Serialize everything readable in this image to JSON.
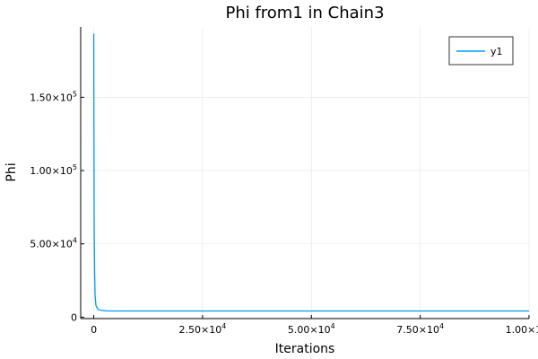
{
  "chart_data": {
    "type": "line",
    "title": "Phi from1 in Chain3",
    "xlabel": "Iterations",
    "ylabel": "Phi",
    "xlim": [
      -3000,
      100000
    ],
    "ylim": [
      -1000,
      198000
    ],
    "grid": true,
    "legend_position": "top-right",
    "x_ticks": [
      {
        "value": 0,
        "mantissa": "0",
        "exp": ""
      },
      {
        "value": 25000,
        "mantissa": "2.50×10",
        "exp": "4"
      },
      {
        "value": 50000,
        "mantissa": "5.00×10",
        "exp": "4"
      },
      {
        "value": 75000,
        "mantissa": "7.50×10",
        "exp": "4"
      },
      {
        "value": 100000,
        "mantissa": "1.00×10",
        "exp": "5"
      }
    ],
    "y_ticks": [
      {
        "value": 0,
        "mantissa": "0",
        "exp": ""
      },
      {
        "value": 50000,
        "mantissa": "5.00×10",
        "exp": "4"
      },
      {
        "value": 100000,
        "mantissa": "1.00×10",
        "exp": "5"
      },
      {
        "value": 150000,
        "mantissa": "1.50×10",
        "exp": "5"
      }
    ],
    "series": [
      {
        "name": "y1",
        "color": "#009AFA",
        "x": [
          1,
          50,
          100,
          200,
          300,
          500,
          800,
          1200,
          2000,
          3000,
          5000,
          10000,
          20000,
          40000,
          60000,
          80000,
          100000
        ],
        "y": [
          193500,
          120000,
          60000,
          30000,
          15000,
          8000,
          6000,
          5000,
          4500,
          4300,
          4200,
          4200,
          4200,
          4200,
          4200,
          4200,
          4200
        ]
      }
    ]
  }
}
